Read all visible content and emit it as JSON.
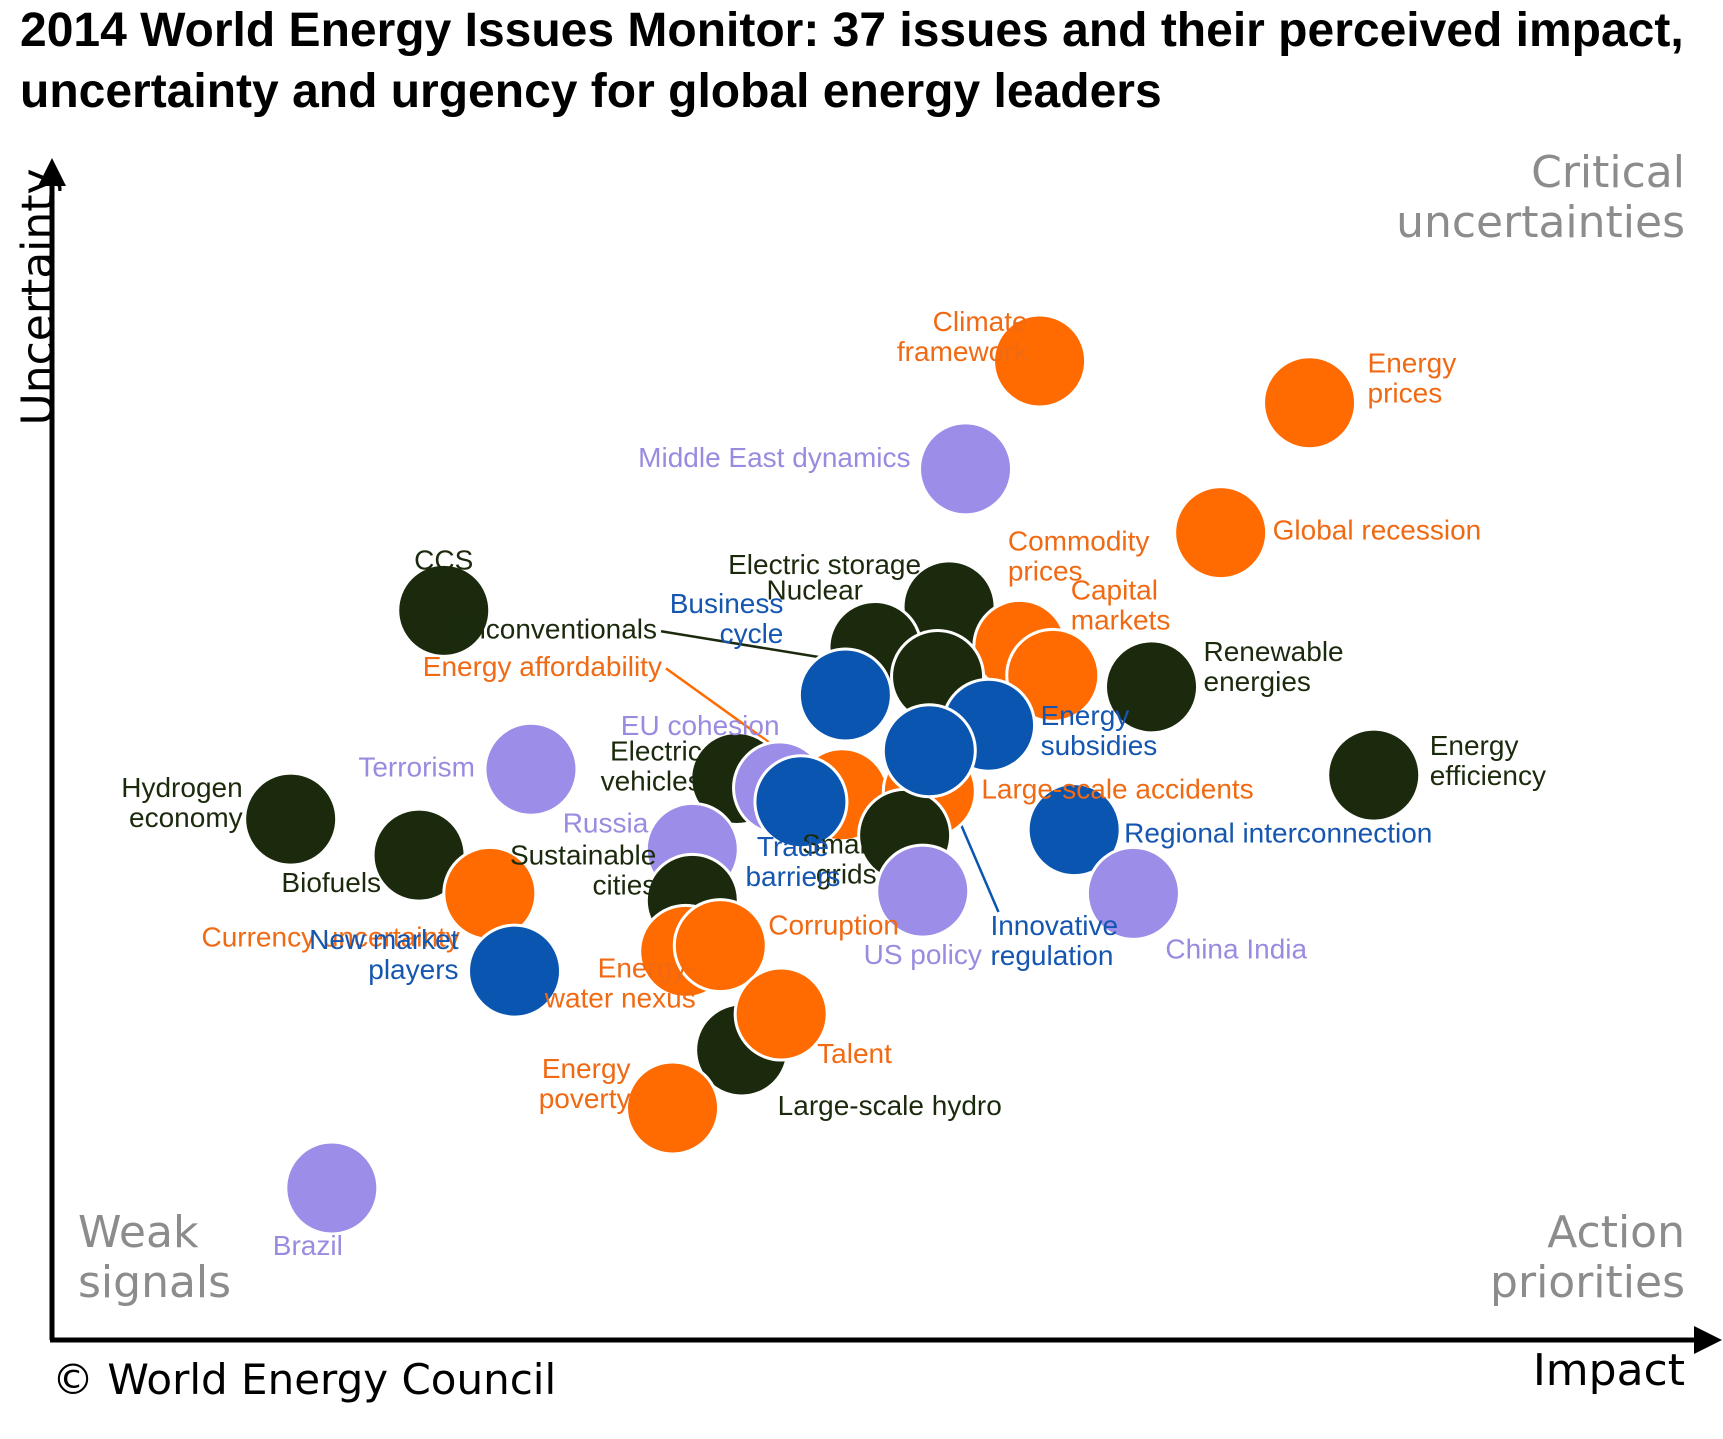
{
  "title": {
    "bold": "2014 World Energy Issues Monitor",
    "rest": ": 37 issues and their perceived impact, uncertainty and urgency for global energy leaders"
  },
  "quadrants": {
    "top_right": [
      "Critical",
      "uncertainties"
    ],
    "bottom_left": [
      "Weak",
      "signals"
    ],
    "bottom_right": [
      "Action",
      "priorities"
    ]
  },
  "copyright": "© World Energy Council",
  "colors": {
    "orange": "#ff6b00",
    "lavender": "#9b8de8",
    "navy": "#0a55b0",
    "darkgreen": "#1b2a0d",
    "orange_text": "#f06a14",
    "lavender_text": "#9a8be0",
    "navy_text": "#1556b0",
    "darkgreen_text": "#1b2a0d"
  },
  "chart_data": {
    "type": "scatter",
    "xlabel": "Impact",
    "ylabel": "Uncertainty",
    "xlim": [
      0,
      100
    ],
    "ylim": [
      0,
      100
    ],
    "grid": false,
    "points": [
      {
        "name": "Climate framework",
        "x": 60.0,
        "y": 84.4,
        "c": "orange",
        "lbl": [
          "Climate",
          "framework"
        ],
        "anchor": "end",
        "lx": -12,
        "ly": -22
      },
      {
        "name": "Energy prices",
        "x": 76.4,
        "y": 80.8,
        "c": "orange",
        "lbl": [
          "Energy",
          "prices"
        ],
        "anchor": "start",
        "lx": 58,
        "ly": -22
      },
      {
        "name": "Middle East dynamics",
        "x": 55.5,
        "y": 75.1,
        "c": "lavender",
        "lbl": [
          "Middle East dynamics"
        ],
        "anchor": "end",
        "lx": -55,
        "ly": -9
      },
      {
        "name": "Global recession",
        "x": 71.0,
        "y": 69.6,
        "c": "orange",
        "lbl": [
          "Global recession"
        ],
        "anchor": "start",
        "lx": 52,
        "ly": 0
      },
      {
        "name": "Electric storage",
        "x": 54.5,
        "y": 63.2,
        "c": "darkgreen",
        "lbl": [
          "Electric storage"
        ],
        "anchor": "end",
        "lx": -28,
        "ly": -40
      },
      {
        "name": "Commodity prices",
        "x": 58.8,
        "y": 59.8,
        "c": "orange",
        "lbl": [
          "Commodity",
          "prices"
        ],
        "anchor": "start",
        "lx": -12,
        "ly": -88
      },
      {
        "name": "Capital markets",
        "x": 60.8,
        "y": 57.3,
        "c": "orange",
        "lbl": [
          "Capital",
          "markets"
        ],
        "anchor": "start",
        "lx": 18,
        "ly": -68
      },
      {
        "name": "Nuclear",
        "x": 50.0,
        "y": 59.7,
        "c": "darkgreen",
        "lbl": [
          "Nuclear"
        ],
        "anchor": "end",
        "lx": -12,
        "ly": -55
      },
      {
        "name": "Unconventionals",
        "x": 53.8,
        "y": 57.2,
        "c": "darkgreen",
        "lbl": [],
        "anchor": "end",
        "lx": 0,
        "ly": 0
      },
      {
        "name": "CCS",
        "x": 23.8,
        "y": 62.9,
        "c": "darkgreen",
        "lbl": [
          "CCS"
        ],
        "anchor": "middle",
        "lx": 0,
        "ly": -48
      },
      {
        "name": "Business cycle",
        "x": 48.2,
        "y": 55.6,
        "c": "navy",
        "lbl": [
          "Business",
          "cycle"
        ],
        "anchor": "end",
        "lx": -62,
        "ly": -74
      },
      {
        "name": "Renewable energies",
        "x": 66.8,
        "y": 56.3,
        "c": "darkgreen",
        "lbl": [
          "Renewable",
          "energies"
        ],
        "anchor": "start",
        "lx": 52,
        "ly": -18
      },
      {
        "name": "Energy affordability",
        "x": 48.0,
        "y": 47.0,
        "c": "orange",
        "lbl": [],
        "anchor": "end",
        "lx": 0,
        "ly": 0
      },
      {
        "name": "Large-scale accidents",
        "x": 53.3,
        "y": 47.3,
        "c": "orange",
        "lbl": [
          "Large-scale accidents"
        ],
        "anchor": "start",
        "lx": 52,
        "ly": 0
      },
      {
        "name": "Smart grids",
        "x": 51.8,
        "y": 43.5,
        "c": "darkgreen",
        "lbl": [
          "Smart",
          "grids"
        ],
        "anchor": "end",
        "lx": -28,
        "ly": 26
      },
      {
        "name": "Energy subsidies",
        "x": 56.9,
        "y": 53.0,
        "c": "navy",
        "lbl": [
          "Energy",
          "subsidies"
        ],
        "anchor": "start",
        "lx": 52,
        "ly": 8
      },
      {
        "name": "Innovative regulation",
        "x": 53.3,
        "y": 50.8,
        "c": "navy",
        "lbl": [],
        "anchor": "start",
        "lx": 0,
        "ly": 0
      },
      {
        "name": "Electric vehicles",
        "x": 41.6,
        "y": 48.4,
        "c": "darkgreen",
        "lbl": [
          "Electric",
          "vehicles"
        ],
        "anchor": "end",
        "lx": -35,
        "ly": -10
      },
      {
        "name": "EU cohesion",
        "x": 44.2,
        "y": 47.6,
        "c": "lavender",
        "lbl": [
          "EU cohesion"
        ],
        "anchor": "end",
        "lx": 0,
        "ly": -60
      },
      {
        "name": "Trade barriers",
        "x": 45.5,
        "y": 46.4,
        "c": "navy",
        "lbl": [
          "Trade",
          "barriers"
        ],
        "anchor": "middle",
        "lx": -8,
        "ly": 62
      },
      {
        "name": "Energy efficiency",
        "x": 80.3,
        "y": 48.7,
        "c": "darkgreen",
        "lbl": [
          "Energy",
          "efficiency"
        ],
        "anchor": "start",
        "lx": 56,
        "ly": -12
      },
      {
        "name": "Terrorism",
        "x": 29.1,
        "y": 49.2,
        "c": "lavender",
        "lbl": [
          "Terrorism"
        ],
        "anchor": "end",
        "lx": -56,
        "ly": 0
      },
      {
        "name": "Hydrogen economy",
        "x": 14.5,
        "y": 44.9,
        "c": "darkgreen",
        "lbl": [
          "Hydrogen",
          "economy"
        ],
        "anchor": "end",
        "lx": -48,
        "ly": -14
      },
      {
        "name": "Regional interconnection",
        "x": 62.1,
        "y": 44.0,
        "c": "navy",
        "lbl": [
          "Regional interconnection"
        ],
        "anchor": "start",
        "lx": 50,
        "ly": 6
      },
      {
        "name": "Russia",
        "x": 38.9,
        "y": 42.3,
        "c": "lavender",
        "lbl": [
          "Russia"
        ],
        "anchor": "end",
        "lx": -44,
        "ly": -24
      },
      {
        "name": "Biofuels",
        "x": 22.3,
        "y": 41.8,
        "c": "darkgreen",
        "lbl": [
          "Biofuels"
        ],
        "anchor": "end",
        "lx": -38,
        "ly": 30
      },
      {
        "name": "China India",
        "x": 65.7,
        "y": 38.5,
        "c": "lavender",
        "lbl": [
          "China India"
        ],
        "anchor": "start",
        "lx": 32,
        "ly": 58
      },
      {
        "name": "US policy",
        "x": 52.9,
        "y": 38.7,
        "c": "lavender",
        "lbl": [
          "US policy"
        ],
        "anchor": "middle",
        "lx": 0,
        "ly": 66
      },
      {
        "name": "Sustainable cities",
        "x": 38.9,
        "y": 37.9,
        "c": "darkgreen",
        "lbl": [
          "Sustainable",
          "cities"
        ],
        "anchor": "end",
        "lx": -36,
        "ly": -28
      },
      {
        "name": "Currency uncertainty",
        "x": 26.6,
        "y": 38.5,
        "c": "orange",
        "lbl": [
          "Currency uncertainty"
        ],
        "anchor": "end",
        "lx": -30,
        "ly": 46
      },
      {
        "name": "Energy-water nexus",
        "x": 38.5,
        "y": 33.5,
        "c": "orange",
        "lbl": [
          "Energy-",
          "water nexus"
        ],
        "anchor": "end",
        "lx": 10,
        "ly": 34
      },
      {
        "name": "Corruption",
        "x": 40.6,
        "y": 34.0,
        "c": "orange",
        "lbl": [
          "Corruption"
        ],
        "anchor": "start",
        "lx": 48,
        "ly": -18
      },
      {
        "name": "New market players",
        "x": 28.1,
        "y": 31.8,
        "c": "navy",
        "lbl": [
          "New market",
          "players"
        ],
        "anchor": "end",
        "lx": -56,
        "ly": -14
      },
      {
        "name": "Large-scale hydro",
        "x": 41.9,
        "y": 25.0,
        "c": "darkgreen",
        "lbl": [
          "Large-scale hydro"
        ],
        "anchor": "start",
        "lx": 36,
        "ly": 58
      },
      {
        "name": "Talent",
        "x": 44.3,
        "y": 28.1,
        "c": "orange",
        "lbl": [
          "Talent"
        ],
        "anchor": "start",
        "lx": 36,
        "ly": 42
      },
      {
        "name": "Energy poverty",
        "x": 37.7,
        "y": 20.0,
        "c": "orange",
        "lbl": [
          "Energy",
          "poverty"
        ],
        "anchor": "end",
        "lx": -42,
        "ly": -22
      },
      {
        "name": "Brazil",
        "x": 17.0,
        "y": 13.1,
        "c": "lavender",
        "lbl": [
          "Brazil"
        ],
        "anchor": "middle",
        "lx": -24,
        "ly": 60
      }
    ],
    "callouts": [
      {
        "label": "Unconventionals",
        "color": "darkgreen",
        "from": "Unconventionals",
        "text_x": 37.0,
        "text_y": 61.1
      },
      {
        "label": "Energy affordability",
        "color": "orange",
        "from": "Energy affordability",
        "text_x": 37.3,
        "text_y": 57.9
      },
      {
        "label": "Innovative regulation",
        "color": "navy",
        "from": "Innovative regulation",
        "text_x": 57.5,
        "text_y": 36.9,
        "lines": [
          "Innovative",
          "regulation"
        ]
      }
    ]
  }
}
